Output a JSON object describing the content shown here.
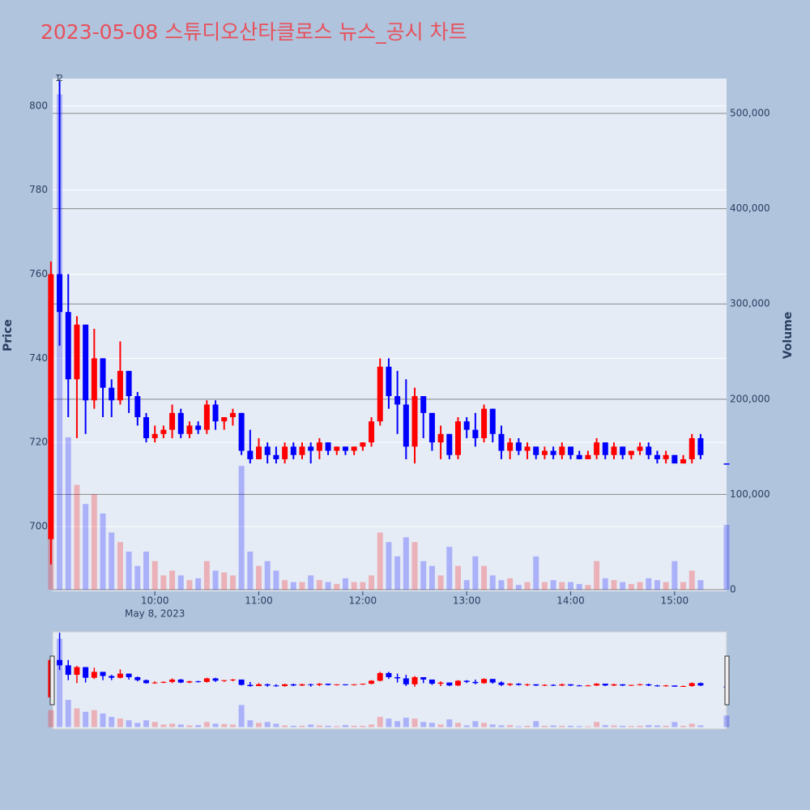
{
  "chart_data": {
    "type": "candlestick",
    "title": "2023-05-08 스튜디오산타클로스 뉴스_공시 차트",
    "y_label": "Price",
    "y2_label": "Volume",
    "x_date_label": "May 8, 2023",
    "annotations": [
      "1",
      "2"
    ],
    "increasing_color": "#ff0000",
    "decreasing_color": "#0000ff",
    "x": [
      "2023-05-08 09:00",
      "2023-05-08 09:05",
      "2023-05-08 09:10",
      "2023-05-08 09:15",
      "2023-05-08 09:20",
      "2023-05-08 09:25",
      "2023-05-08 09:30",
      "2023-05-08 09:35",
      "2023-05-08 09:40",
      "2023-05-08 09:45",
      "2023-05-08 09:50",
      "2023-05-08 09:55",
      "2023-05-08 10:00",
      "2023-05-08 10:05",
      "2023-05-08 10:10",
      "2023-05-08 10:15",
      "2023-05-08 10:20",
      "2023-05-08 10:25",
      "2023-05-08 10:30",
      "2023-05-08 10:35",
      "2023-05-08 10:40",
      "2023-05-08 10:45",
      "2023-05-08 10:50",
      "2023-05-08 10:55",
      "2023-05-08 11:00",
      "2023-05-08 11:05",
      "2023-05-08 11:10",
      "2023-05-08 11:15",
      "2023-05-08 11:20",
      "2023-05-08 11:25",
      "2023-05-08 11:30",
      "2023-05-08 11:35",
      "2023-05-08 11:40",
      "2023-05-08 11:45",
      "2023-05-08 11:50",
      "2023-05-08 11:55",
      "2023-05-08 12:00",
      "2023-05-08 12:05",
      "2023-05-08 12:10",
      "2023-05-08 12:15",
      "2023-05-08 12:20",
      "2023-05-08 12:25",
      "2023-05-08 12:30",
      "2023-05-08 12:35",
      "2023-05-08 12:40",
      "2023-05-08 12:45",
      "2023-05-08 12:50",
      "2023-05-08 12:55",
      "2023-05-08 13:00",
      "2023-05-08 13:05",
      "2023-05-08 13:10",
      "2023-05-08 13:15",
      "2023-05-08 13:20",
      "2023-05-08 13:25",
      "2023-05-08 13:30",
      "2023-05-08 13:35",
      "2023-05-08 13:40",
      "2023-05-08 13:45",
      "2023-05-08 13:50",
      "2023-05-08 13:55",
      "2023-05-08 14:00",
      "2023-05-08 14:05",
      "2023-05-08 14:10",
      "2023-05-08 14:15",
      "2023-05-08 14:20",
      "2023-05-08 14:25",
      "2023-05-08 14:30",
      "2023-05-08 14:35",
      "2023-05-08 14:40",
      "2023-05-08 14:45",
      "2023-05-08 14:50",
      "2023-05-08 14:55",
      "2023-05-08 15:00",
      "2023-05-08 15:05",
      "2023-05-08 15:10",
      "2023-05-08 15:15",
      "2023-05-08 15:30"
    ],
    "open": [
      697,
      760,
      751,
      735,
      748,
      730,
      740,
      733,
      730,
      737,
      731,
      726,
      721,
      722,
      723,
      727,
      722,
      724,
      723,
      729,
      725,
      726,
      727,
      718,
      716,
      719,
      717,
      716,
      719,
      717,
      719,
      718,
      720,
      718,
      719,
      718,
      719,
      720,
      725,
      738,
      731,
      729,
      719,
      731,
      727,
      720,
      722,
      717,
      725,
      723,
      721,
      728,
      722,
      718,
      720,
      718,
      719,
      717,
      718,
      717,
      719,
      717,
      716,
      717,
      720,
      717,
      719,
      717,
      718,
      719,
      717,
      716,
      717,
      715,
      716,
      721,
      715
    ],
    "high": [
      763,
      806,
      760,
      750,
      748,
      747,
      740,
      735,
      744,
      737,
      732,
      727,
      724,
      724,
      729,
      728,
      725,
      725,
      730,
      730,
      726,
      728,
      727,
      723,
      721,
      720,
      719,
      720,
      720,
      720,
      720,
      721,
      720,
      719,
      719,
      719,
      720,
      726,
      740,
      740,
      737,
      735,
      733,
      731,
      727,
      724,
      722,
      726,
      726,
      727,
      729,
      728,
      724,
      721,
      721,
      720,
      719,
      719,
      719,
      720,
      719,
      718,
      718,
      721,
      720,
      720,
      719,
      718,
      720,
      720,
      718,
      718,
      717,
      717,
      722,
      722,
      715
    ],
    "low": [
      691,
      743,
      726,
      721,
      722,
      728,
      726,
      726,
      729,
      727,
      724,
      720,
      720,
      721,
      721,
      721,
      721,
      722,
      722,
      723,
      723,
      724,
      717,
      715,
      716,
      715,
      715,
      715,
      716,
      716,
      715,
      716,
      717,
      717,
      717,
      717,
      718,
      719,
      724,
      728,
      722,
      716,
      715,
      721,
      718,
      716,
      716,
      716,
      721,
      719,
      720,
      720,
      716,
      716,
      717,
      716,
      716,
      716,
      716,
      716,
      716,
      716,
      716,
      716,
      716,
      716,
      716,
      716,
      717,
      716,
      715,
      715,
      715,
      715,
      715,
      716,
      715
    ],
    "close": [
      760,
      751,
      735,
      748,
      730,
      740,
      733,
      730,
      737,
      731,
      726,
      721,
      722,
      723,
      727,
      722,
      724,
      723,
      729,
      725,
      726,
      727,
      718,
      716,
      719,
      717,
      716,
      719,
      717,
      719,
      718,
      720,
      718,
      719,
      718,
      719,
      720,
      725,
      738,
      731,
      729,
      719,
      731,
      727,
      720,
      722,
      717,
      725,
      723,
      721,
      728,
      722,
      718,
      720,
      718,
      719,
      717,
      718,
      717,
      719,
      717,
      716,
      717,
      720,
      717,
      719,
      717,
      718,
      719,
      717,
      716,
      717,
      715,
      716,
      721,
      717,
      715
    ],
    "volume": [
      100000,
      520000,
      160000,
      110000,
      90000,
      100000,
      80000,
      60000,
      50000,
      40000,
      25000,
      40000,
      30000,
      15000,
      20000,
      15000,
      10000,
      12000,
      30000,
      20000,
      18000,
      15000,
      130000,
      40000,
      25000,
      30000,
      20000,
      10000,
      8000,
      8000,
      15000,
      10000,
      8000,
      6000,
      12000,
      8000,
      8000,
      15000,
      60000,
      50000,
      35000,
      55000,
      50000,
      30000,
      25000,
      15000,
      45000,
      25000,
      10000,
      35000,
      25000,
      15000,
      10000,
      12000,
      5000,
      8000,
      35000,
      8000,
      10000,
      8000,
      8000,
      6000,
      5000,
      30000,
      12000,
      10000,
      8000,
      6000,
      8000,
      12000,
      10000,
      8000,
      30000,
      8000,
      20000,
      10000,
      68000
    ],
    "xlim": [
      "2023-05-08 09:01",
      "2023-05-08 15:30"
    ],
    "xticks": [
      {
        "value": "2023-05-08 10:00",
        "label": "10:00"
      },
      {
        "value": "2023-05-08 11:00",
        "label": "11:00"
      },
      {
        "value": "2023-05-08 12:00",
        "label": "12:00"
      },
      {
        "value": "2023-05-08 13:00",
        "label": "13:00"
      },
      {
        "value": "2023-05-08 14:00",
        "label": "14:00"
      },
      {
        "value": "2023-05-08 15:00",
        "label": "15:00"
      }
    ],
    "ylim": [
      684.6,
      806.5
    ],
    "yticks": [
      700,
      720,
      740,
      760,
      780,
      800
    ],
    "y2lim": [
      -1700,
      536600
    ],
    "y2ticks": [
      0,
      {
        "value": 100000,
        "label": "100,000"
      },
      {
        "value": 200000,
        "label": "200,000"
      },
      {
        "value": 300000,
        "label": "300,000"
      },
      {
        "value": 400000,
        "label": "400,000"
      },
      {
        "value": 500000,
        "label": "500,000"
      }
    ],
    "grid": true,
    "range_slider": true
  }
}
